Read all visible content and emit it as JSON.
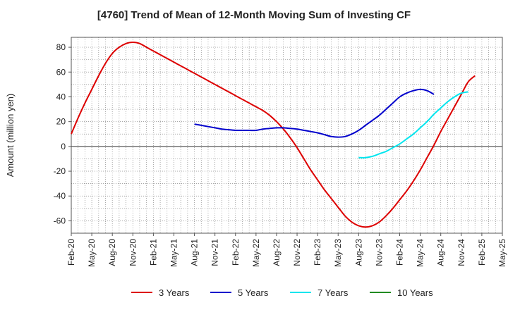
{
  "chart_data": {
    "type": "line",
    "title": "[4760]  Trend of Mean of 12-Month Moving Sum of Investing CF",
    "xlabel": "",
    "ylabel": "Amount (million yen)",
    "ylim": [
      -70,
      88
    ],
    "yticks": [
      80,
      60,
      40,
      20,
      0,
      -20,
      -40,
      -60
    ],
    "xticks": [
      "Feb-20",
      "May-20",
      "Aug-20",
      "Nov-20",
      "Feb-21",
      "May-21",
      "Aug-21",
      "Nov-21",
      "Feb-22",
      "May-22",
      "Aug-22",
      "Nov-22",
      "Feb-23",
      "May-23",
      "Aug-23",
      "Nov-23",
      "Feb-24",
      "May-24",
      "Aug-24",
      "Nov-24",
      "Feb-25",
      "May-25"
    ],
    "grid": true,
    "legend_position": "bottom",
    "series": [
      {
        "name": "3 Years",
        "color": "#dd0000",
        "start_index": 0,
        "values": [
          10,
          23,
          35,
          46,
          57,
          67,
          75,
          80,
          83,
          84,
          83,
          80,
          77,
          74,
          71,
          68,
          65,
          62,
          59,
          56,
          53,
          50,
          47,
          44,
          41,
          38,
          35,
          32,
          29,
          25,
          20,
          14,
          7,
          -1,
          -10,
          -19,
          -27,
          -35,
          -42,
          -49,
          -56,
          -61,
          -64,
          -65,
          -64,
          -61,
          -56,
          -50,
          -43,
          -36,
          -28,
          -19,
          -9,
          1,
          12,
          22,
          32,
          42,
          52,
          57
        ]
      },
      {
        "name": "5 Years",
        "color": "#0000cc",
        "start_index": 18,
        "values": [
          18,
          17,
          16,
          15,
          14,
          13.5,
          13,
          13,
          13,
          13,
          14,
          14.5,
          15,
          15,
          14.5,
          14,
          13,
          12,
          11,
          9.5,
          8,
          7.5,
          8,
          10,
          13,
          17,
          21,
          25,
          30,
          35,
          40,
          43,
          45,
          46,
          45,
          42
        ]
      },
      {
        "name": "7 Years",
        "color": "#00e5ee",
        "start_index": 42,
        "values": [
          -9,
          -9,
          -8,
          -6,
          -4,
          -1,
          2,
          6,
          10,
          15,
          20,
          26,
          31,
          36,
          40,
          43,
          44
        ]
      },
      {
        "name": "10 Years",
        "color": "#228b22",
        "start_index": 0,
        "values": []
      }
    ]
  }
}
